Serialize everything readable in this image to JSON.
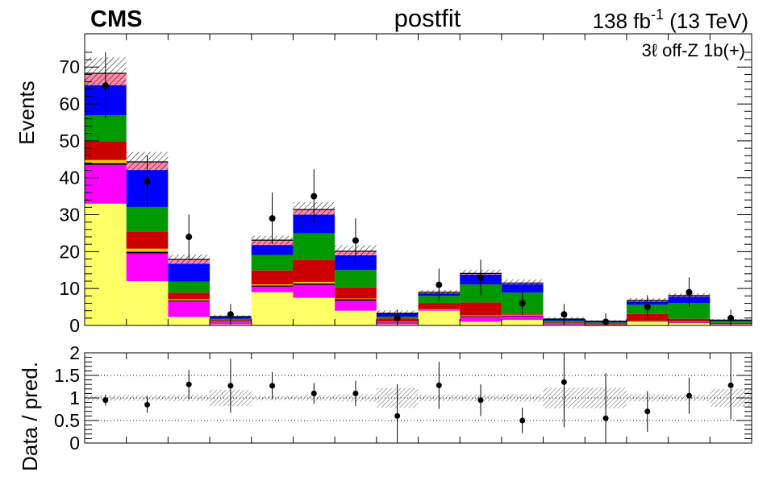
{
  "header": {
    "experiment": "CMS",
    "fit_label": "postfit",
    "lumi_value": "138 fb",
    "lumi_exponent": "-1",
    "energy": "(13 TeV)",
    "region": "3ℓ off-Z 1b(+)"
  },
  "chart_data": [
    {
      "type": "bar",
      "stacked": true,
      "ylabel": "Events",
      "ylim": [
        0,
        79
      ],
      "yticks": [
        0,
        10,
        20,
        30,
        40,
        50,
        60,
        70
      ],
      "bins": 16,
      "series": [
        {
          "color": "#ffff66",
          "values": [
            33,
            12,
            2.3,
            0.3,
            9,
            7.5,
            4,
            0.3,
            4,
            1,
            1.5,
            0.2,
            0.1,
            1,
            0.6,
            0.2
          ]
        },
        {
          "color": "#ff00ff",
          "values": [
            10.5,
            7.5,
            4.2,
            0.6,
            1.5,
            3.5,
            2.7,
            0.5,
            0.2,
            1.3,
            1,
            0.2,
            0.1,
            0.1,
            0.2,
            0.1
          ]
        },
        {
          "color": "#000000",
          "values": [
            0.5,
            0.5,
            0.3,
            0.1,
            0.3,
            0.4,
            0.4,
            0.1,
            0.1,
            0.2,
            0.2,
            0.05,
            0.05,
            0.1,
            0.1,
            0.05
          ]
        },
        {
          "color": "#ffcc00",
          "values": [
            0.8,
            0.8,
            0.3,
            0.1,
            0.3,
            0.4,
            0.2,
            0.1,
            0.1,
            0.2,
            0.2,
            0.05,
            0.05,
            0.1,
            0.1,
            0.05
          ]
        },
        {
          "color": "#cc0000",
          "values": [
            5.1,
            4.6,
            1.8,
            0.3,
            3.8,
            5.9,
            3,
            0.9,
            1.6,
            3.5,
            0.3,
            0.3,
            0.3,
            1.8,
            0.8,
            0.3
          ]
        },
        {
          "color": "#009900",
          "values": [
            7,
            6.7,
            3,
            0.4,
            4.2,
            7.3,
            4.7,
            0.5,
            2,
            4.9,
            5.7,
            0.5,
            0.2,
            2.5,
            4.3,
            0.5
          ]
        },
        {
          "color": "#0000ff",
          "values": [
            8.2,
            10,
            4.8,
            0.5,
            2.7,
            5,
            4,
            0.8,
            0.7,
            2.7,
            2.3,
            0.4,
            0.3,
            0.9,
            1.7,
            0.2
          ]
        },
        {
          "color": "#ff88aa",
          "values": [
            3.2,
            2.2,
            1.2,
            0.1,
            1.3,
            1.4,
            1.1,
            0.1,
            0.3,
            0.3,
            0.3,
            0.05,
            0.05,
            0.3,
            0.3,
            0.05
          ]
        }
      ],
      "uncertainty": [
        4.3,
        2.7,
        1.3,
        0.4,
        1.2,
        2,
        1.6,
        0.8,
        0.6,
        1,
        1,
        0.5,
        0.3,
        0.6,
        0.6,
        0.3
      ],
      "data": {
        "values": [
          65,
          39,
          24,
          3,
          29,
          35,
          23,
          2,
          11,
          13,
          6,
          3,
          1,
          5,
          9,
          2
        ],
        "errors": [
          9,
          7,
          6,
          2.8,
          7,
          7.3,
          6,
          2.3,
          4.4,
          4.8,
          3.2,
          2.8,
          2.3,
          3.2,
          4,
          2.3
        ]
      }
    },
    {
      "type": "ratio",
      "ylabel": "Data / pred.",
      "ylim": [
        0,
        2
      ],
      "yticks": [
        0,
        0.5,
        1,
        1.5,
        2
      ],
      "gridlines": [
        0.5,
        1,
        1.5
      ],
      "values": [
        0.95,
        0.85,
        1.3,
        1.27,
        1.27,
        1.1,
        1.1,
        0.6,
        1.28,
        0.95,
        0.5,
        1.35,
        0.55,
        0.7,
        1.05,
        1.28
      ],
      "errors": [
        0.12,
        0.18,
        0.32,
        0.6,
        0.3,
        0.23,
        0.28,
        0.7,
        0.52,
        0.35,
        0.28,
        1.0,
        1.0,
        0.45,
        0.4,
        0.75
      ],
      "band": [
        0.06,
        0.06,
        0.07,
        0.18,
        0.05,
        0.06,
        0.08,
        0.22,
        0.07,
        0.07,
        0.08,
        0.23,
        0.23,
        0.08,
        0.07,
        0.2
      ]
    }
  ]
}
